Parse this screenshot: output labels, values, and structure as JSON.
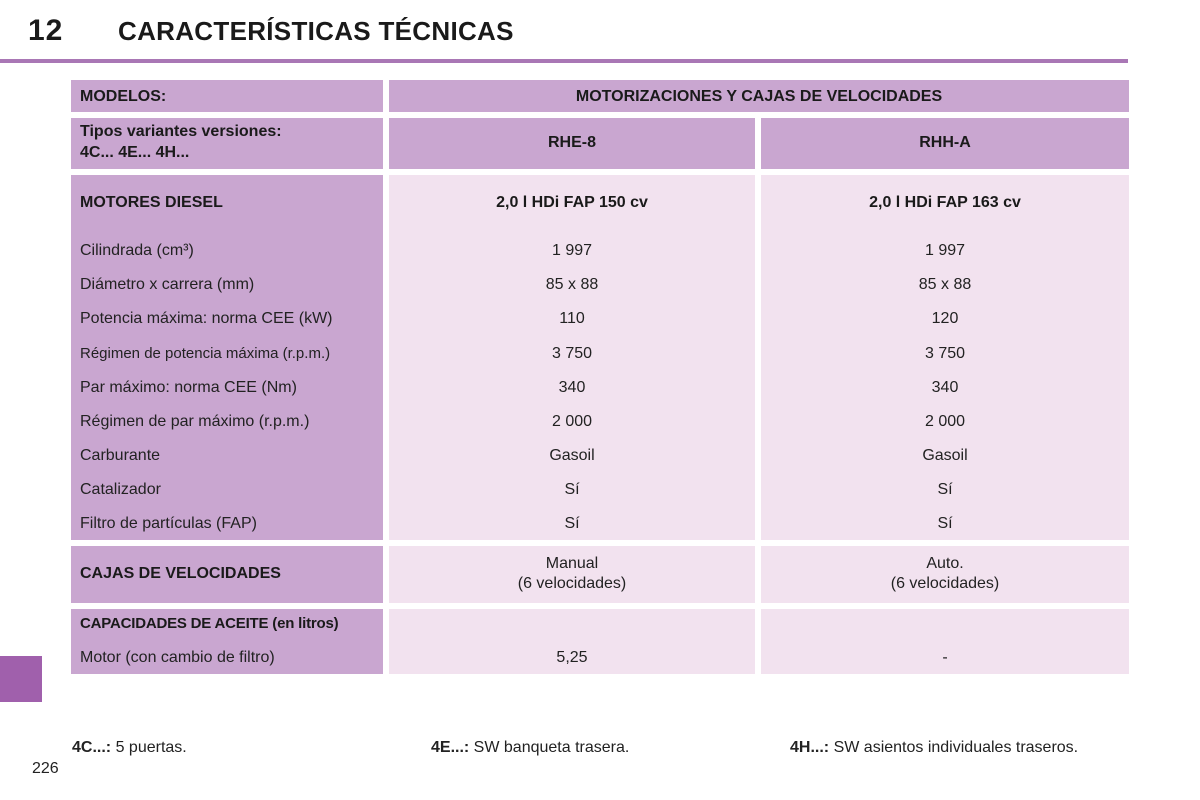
{
  "header": {
    "chapter_number": "12",
    "chapter_title": "CARACTERÍSTICAS TÉCNICAS"
  },
  "table": {
    "modelos_label": "MODELOS:",
    "motorizaciones_header": "MOTORIZACIONES Y CAJAS DE VELOCIDADES",
    "tipos_label_line1": "Tipos variantes versiones:",
    "tipos_label_line2": "4C... 4E... 4H...",
    "col_a_code": "RHE-8",
    "col_b_code": "RHH-A",
    "motores_label": "MOTORES DIESEL",
    "col_a_engine": "2,0 l HDi FAP 150 cv",
    "col_b_engine": "2,0 l HDi FAP 163 cv",
    "specs": [
      {
        "label": "Cilindrada (cm³)",
        "a": "1 997",
        "b": "1 997"
      },
      {
        "label": "Diámetro x carrera (mm)",
        "a": "85 x 88",
        "b": "85 x 88"
      },
      {
        "label": "Potencia máxima: norma CEE (kW)",
        "a": "110",
        "b": "120"
      },
      {
        "label": "Régimen de potencia máxima (r.p.m.)",
        "a": "3 750",
        "b": "3 750"
      },
      {
        "label": "Par máximo: norma CEE (Nm)",
        "a": "340",
        "b": "340"
      },
      {
        "label": "Régimen de par máximo (r.p.m.)",
        "a": "2 000",
        "b": "2 000"
      },
      {
        "label": "Carburante",
        "a": "Gasoil",
        "b": "Gasoil"
      },
      {
        "label": "Catalizador",
        "a": "Sí",
        "b": "Sí"
      },
      {
        "label": "Filtro de partículas (FAP)",
        "a": "Sí",
        "b": "Sí"
      }
    ],
    "cajas_label": "CAJAS DE VELOCIDADES",
    "cajas_a_line1": "Manual",
    "cajas_a_line2": "(6 velocidades)",
    "cajas_b_line1": "Auto.",
    "cajas_b_line2": "(6 velocidades)",
    "aceite_label": "CAPACIDADES DE ACEITE (en litros)",
    "motor_filtro_label": "Motor (con cambio de filtro)",
    "motor_filtro_a": "5,25",
    "motor_filtro_b": "-"
  },
  "footnotes": [
    {
      "code": "4C...:",
      "text": " 5 puertas."
    },
    {
      "code": "4E...:",
      "text": " SW banqueta trasera."
    },
    {
      "code": "4H...:",
      "text": " SW asientos individuales traseros."
    }
  ],
  "page_number": "226",
  "colors": {
    "accent": "#a977b5",
    "header_cell": "#c9a6d0",
    "value_cell": "#f2e2ef",
    "side_tab": "#a060ac"
  }
}
